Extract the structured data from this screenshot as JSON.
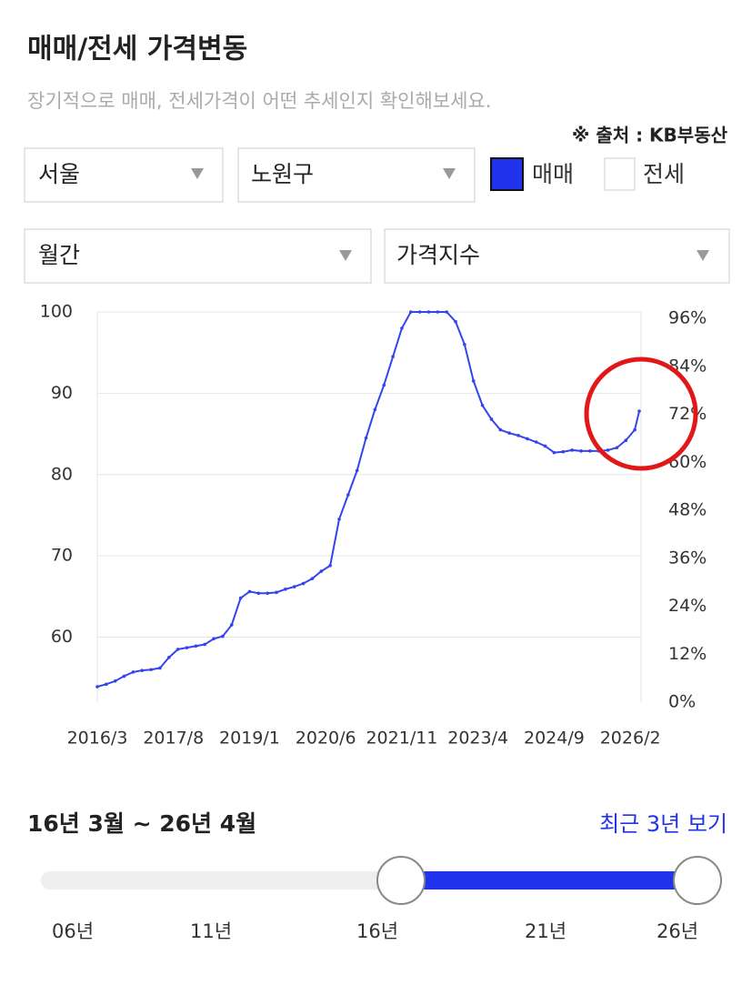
{
  "header": {
    "title": "매매/전세 가격변동",
    "subtitle": "장기적으로 매매, 전세가격이 어떤 추세인지 확인해보세요.",
    "source": "※ 출처 : KB부동산"
  },
  "filters": {
    "region": "서울",
    "district": "노원구",
    "jeonse": "전세",
    "period": "월간",
    "metric": "가격지수"
  },
  "chart_data": {
    "type": "line",
    "x": [
      "2016/3",
      "2016/5",
      "2016/7",
      "2016/9",
      "2016/11",
      "2017/1",
      "2017/3",
      "2017/5",
      "2017/7",
      "2017/9",
      "2017/11",
      "2018/1",
      "2018/3",
      "2018/5",
      "2018/7",
      "2018/9",
      "2018/11",
      "2019/1",
      "2019/3",
      "2019/5",
      "2019/7",
      "2019/9",
      "2019/11",
      "2020/1",
      "2020/3",
      "2020/5",
      "2020/7",
      "2020/9",
      "2020/11",
      "2021/1",
      "2021/3",
      "2021/5",
      "2021/7",
      "2021/9",
      "2021/11",
      "2022/1",
      "2022/3",
      "2022/5",
      "2022/7",
      "2022/9",
      "2022/11",
      "2023/1",
      "2023/3",
      "2023/5",
      "2023/7",
      "2023/9",
      "2023/11",
      "2024/1",
      "2024/3",
      "2024/5",
      "2024/7",
      "2024/9",
      "2024/11",
      "2025/1",
      "2025/3",
      "2025/5",
      "2025/7",
      "2025/9",
      "2025/11",
      "2026/1",
      "2026/3",
      "2026/4"
    ],
    "series": [
      {
        "name": "매매",
        "color": "#3344ee",
        "values": [
          53.9,
          54.2,
          54.6,
          55.2,
          55.7,
          55.9,
          56.0,
          56.2,
          57.5,
          58.5,
          58.7,
          58.9,
          59.1,
          59.8,
          60.1,
          61.5,
          64.8,
          65.6,
          65.4,
          65.4,
          65.5,
          65.9,
          66.2,
          66.6,
          67.2,
          68.1,
          68.8,
          74.5,
          77.5,
          80.5,
          84.5,
          88.0,
          91.0,
          94.5,
          98.0,
          100,
          100,
          100,
          100,
          100,
          98.8,
          96.0,
          91.5,
          88.5,
          86.8,
          85.5,
          85.1,
          84.8,
          84.4,
          84.0,
          83.5,
          82.7,
          82.8,
          83.0,
          82.9,
          82.9,
          82.9,
          83.0,
          83.3,
          84.2,
          85.5,
          87.8
        ]
      }
    ],
    "xlim": [
      "2016/3",
      "2026/4"
    ],
    "xticks": [
      "2016/3",
      "2017/8",
      "2019/1",
      "2020/6",
      "2021/11",
      "2023/4",
      "2024/9",
      "2026/2"
    ],
    "ylim": [
      52,
      100
    ],
    "yticks": [
      60,
      70,
      80,
      90,
      100
    ],
    "y2lim": [
      0,
      97.6
    ],
    "y2ticks": [
      {
        "value": 0,
        "label": "0%"
      },
      {
        "value": 12,
        "label": "12%"
      },
      {
        "value": 24,
        "label": "24%"
      },
      {
        "value": 36,
        "label": "36%"
      },
      {
        "value": 48,
        "label": "48%"
      },
      {
        "value": 60,
        "label": "60%"
      },
      {
        "value": 72,
        "label": "72%"
      },
      {
        "value": 84,
        "label": "84%"
      },
      {
        "value": 96,
        "label": "96%"
      }
    ],
    "grid": true
  },
  "range": {
    "label": "16년 3월 ~ 26년 4월",
    "recent": "최근 3년 보기",
    "ticks": [
      "06년",
      "11년",
      "16년",
      "21년",
      "26년"
    ]
  }
}
